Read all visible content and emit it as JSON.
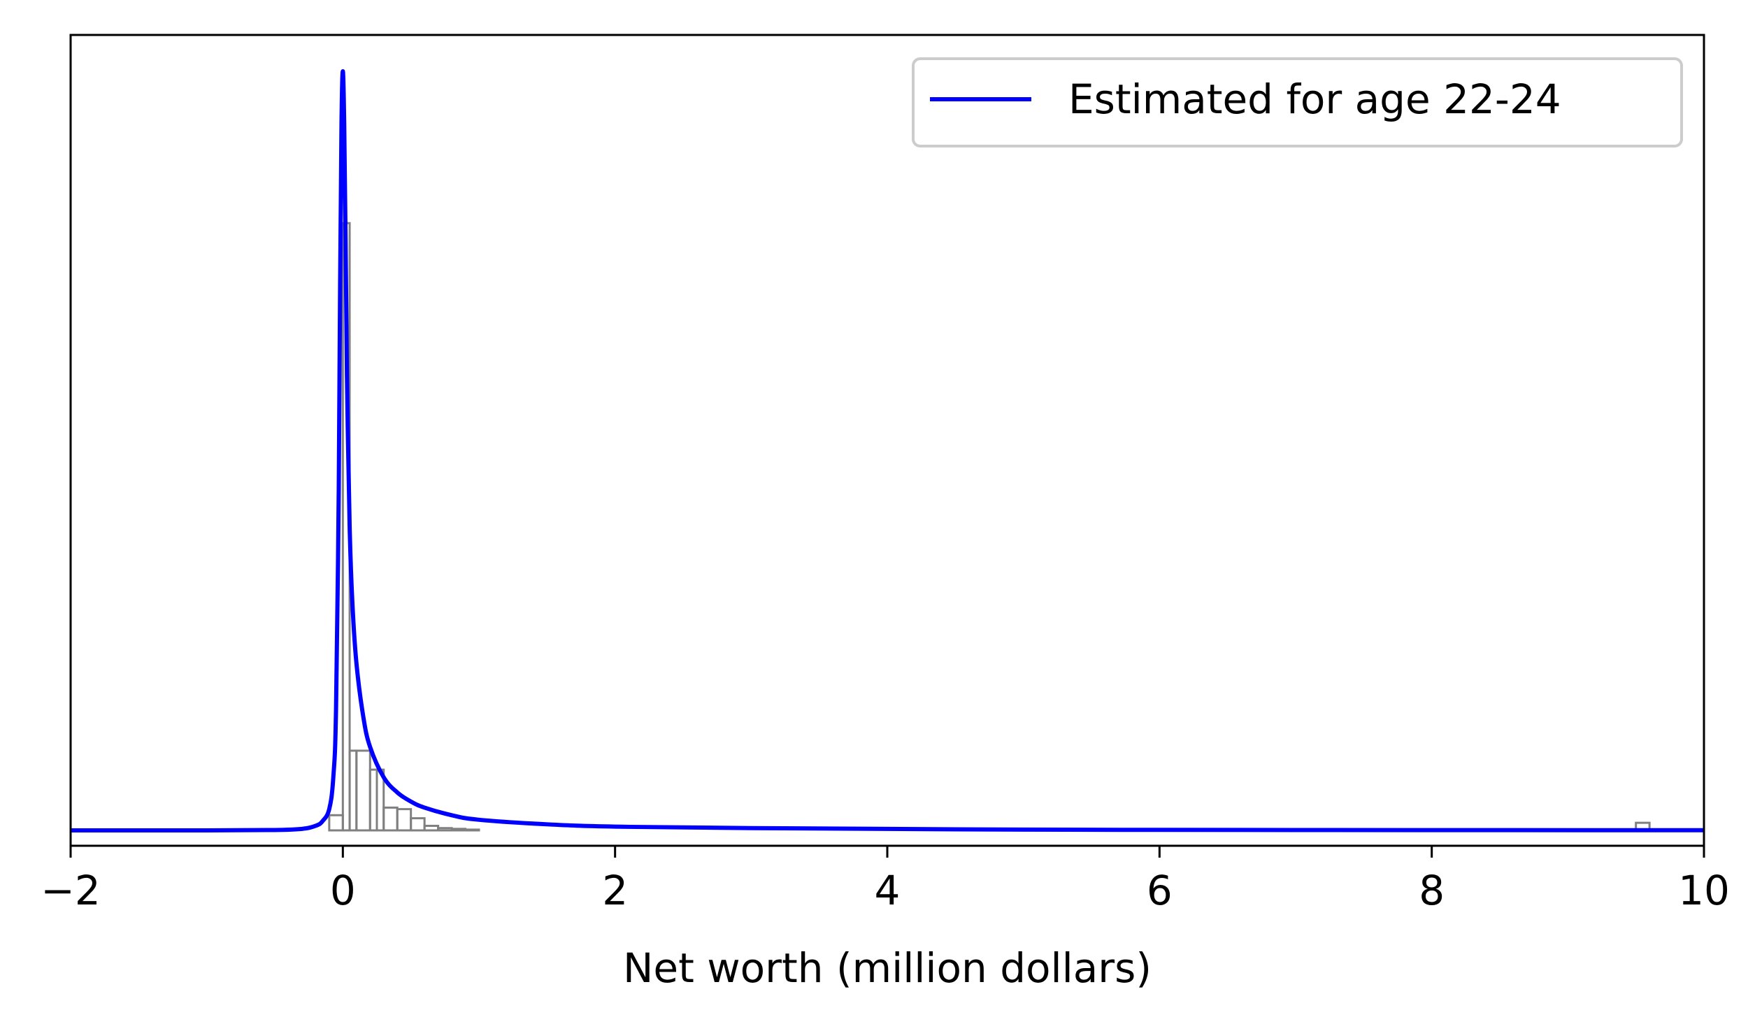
{
  "chart_data": {
    "type": "line",
    "title": "",
    "xlabel": "Net worth (million dollars)",
    "ylabel": "",
    "xlim": [
      -2,
      10
    ],
    "xticks": [
      -2,
      0,
      2,
      4,
      6,
      8,
      10
    ],
    "xtick_labels": [
      "−2",
      "0",
      "2",
      "4",
      "6",
      "8",
      "10"
    ],
    "yticks_visible": false,
    "grid": false,
    "legend": {
      "position": "upper right",
      "entries": [
        "Estimated for age 22-24"
      ]
    },
    "colors": {
      "estimate_line": "#0000ff",
      "histogram": "#808080",
      "axes": "#000000"
    },
    "y_scale": "density (relative to peak = 1)",
    "histogram": {
      "name": "",
      "bin_edges": [
        -0.1,
        0.0,
        0.05,
        0.1,
        0.2,
        0.25,
        0.3,
        0.4,
        0.5,
        0.6,
        0.7,
        0.8,
        0.9,
        1.0
      ],
      "heights": [
        0.02,
        0.8,
        0.105,
        0.105,
        0.08,
        0.08,
        0.03,
        0.028,
        0.016,
        0.006,
        0.003,
        0.002,
        0.001
      ],
      "outlier_bins": [
        {
          "x0": 9.5,
          "x1": 9.6,
          "height": 0.01
        }
      ]
    },
    "series": [
      {
        "name": "Estimated for age 22-24",
        "x": [
          -2.0,
          -1.0,
          -0.5,
          -0.3,
          -0.2,
          -0.15,
          -0.1,
          -0.07,
          -0.05,
          -0.03,
          -0.02,
          -0.01,
          0.0,
          0.01,
          0.02,
          0.03,
          0.05,
          0.07,
          0.1,
          0.15,
          0.2,
          0.3,
          0.4,
          0.5,
          0.6,
          0.8,
          1.0,
          1.5,
          2.0,
          3.0,
          5.0,
          7.0,
          10.0
        ],
        "y": [
          0.0,
          0.0,
          0.0005,
          0.002,
          0.006,
          0.012,
          0.028,
          0.07,
          0.16,
          0.45,
          0.72,
          0.93,
          1.0,
          0.93,
          0.78,
          0.6,
          0.4,
          0.3,
          0.22,
          0.15,
          0.11,
          0.07,
          0.05,
          0.038,
          0.03,
          0.02,
          0.014,
          0.008,
          0.005,
          0.003,
          0.001,
          0.0005,
          0.0002
        ]
      }
    ]
  }
}
